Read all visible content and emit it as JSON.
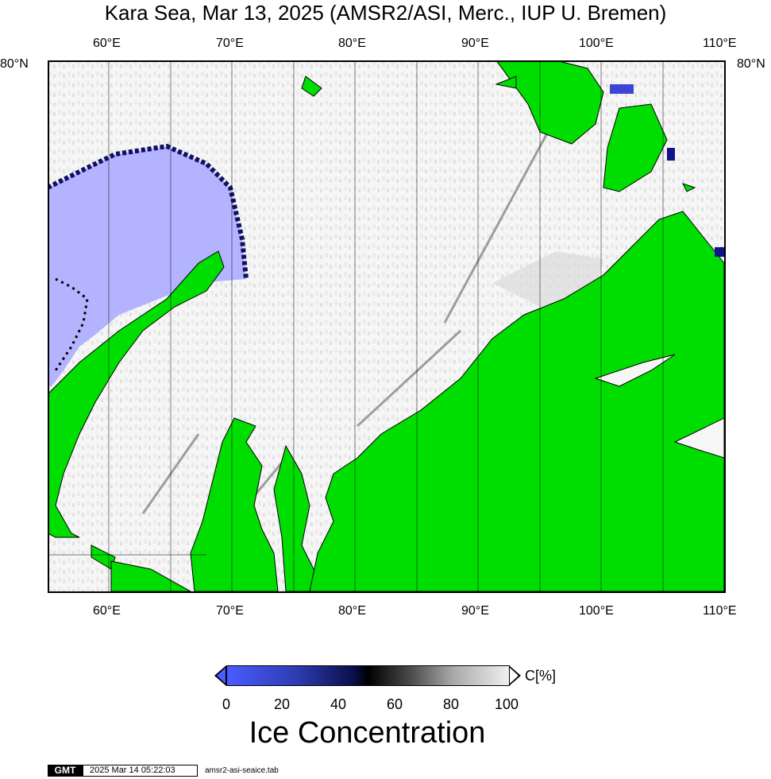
{
  "title": "Kara Sea, Mar 13, 2025 (AMSR2/ASI, Merc., IUP U. Bremen)",
  "map": {
    "lon_labels_top": [
      "60°E",
      "70°E",
      "80°E",
      "90°E",
      "100°E",
      "110°E"
    ],
    "lon_labels_bottom": [
      "60°E",
      "70°E",
      "80°E",
      "90°E",
      "100°E",
      "110°E"
    ],
    "lat_label_left": "80°N",
    "lat_label_right": "80°N",
    "colors": {
      "land": "#00dd00",
      "ice_full": "#f8f8f8",
      "open_water": "#b3b3ff",
      "grid": "#000000"
    }
  },
  "colorbar": {
    "unit": "C[%]",
    "ticks": [
      "0",
      "20",
      "40",
      "60",
      "80",
      "100"
    ],
    "title": "Ice Concentration"
  },
  "footer": {
    "logo": "GMT",
    "timestamp": "2025 Mar 14 05:22:03",
    "source_file": "amsr2-asi-seaice.tab"
  }
}
